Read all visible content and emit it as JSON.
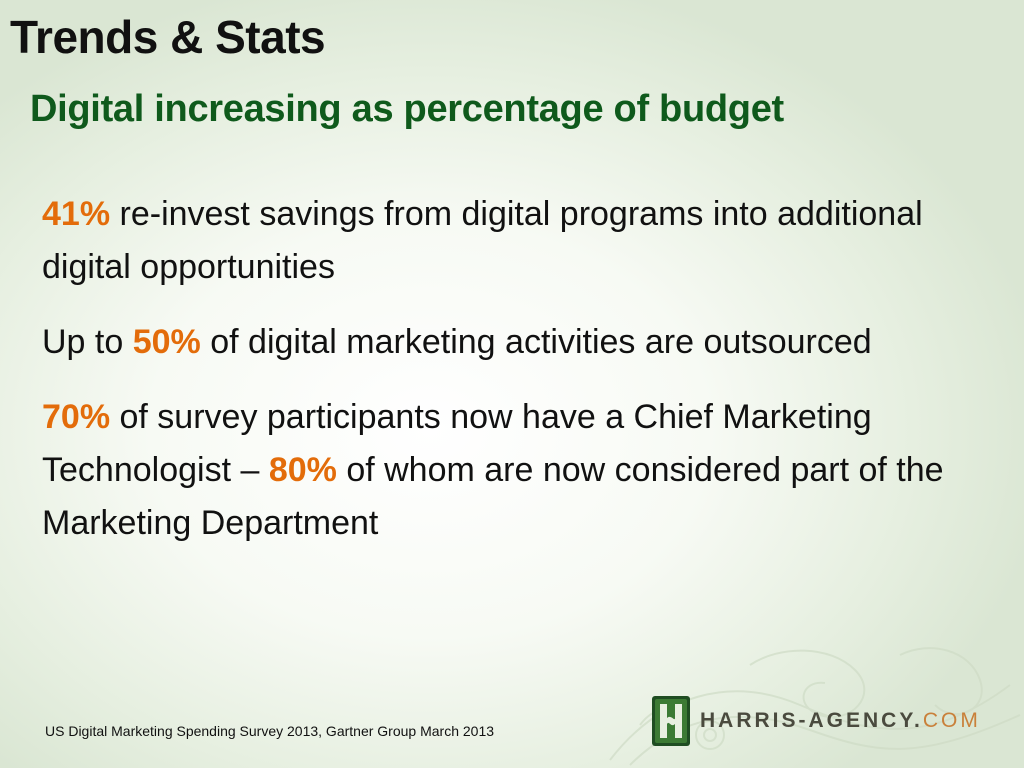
{
  "slide": {
    "title": "Trends & Stats",
    "subtitle": "Digital increasing as percentage of budget",
    "paragraphs": [
      {
        "stat": "41%",
        "text": " re-invest savings from digital programs into additional digital opportunities"
      },
      {
        "pre": "Up to ",
        "stat": "50%",
        "text": " of digital marketing activities are outsourced"
      },
      {
        "stat": "70%",
        "text": " of survey participants now have a Chief Marketing Technologist – ",
        "stat2": "80%",
        "text2": " of whom are now considered part of the Marketing Department"
      }
    ],
    "citation": "US Digital Marketing Spending Survey 2013, Gartner Group March 2013"
  },
  "logo": {
    "name": "HARRIS-AGENCY",
    "dot": ".",
    "tld": "COM",
    "icon": "harris-h-icon"
  },
  "colors": {
    "title": "#111111",
    "subtitle": "#0f5a1c",
    "highlight": "#e36c0a",
    "logo_text": "#4a4a3e",
    "logo_tld": "#c9803a"
  }
}
